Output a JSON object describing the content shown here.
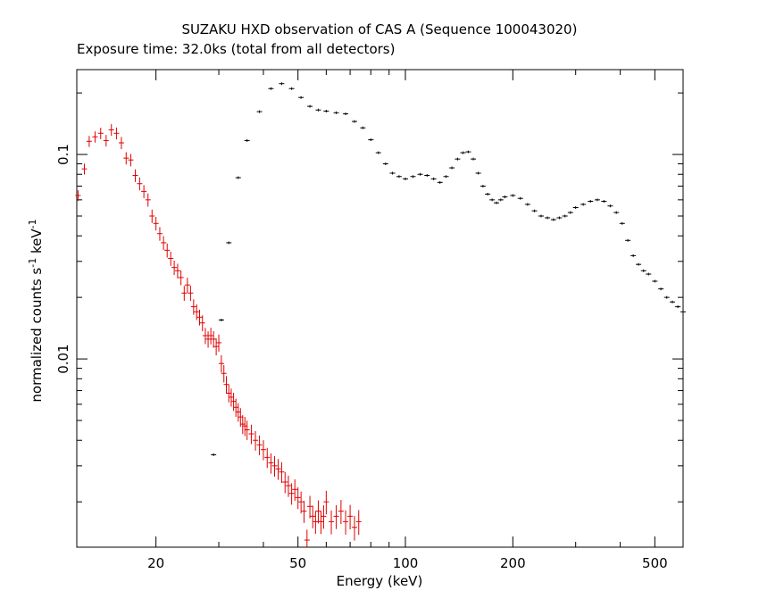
{
  "chart_data": {
    "type": "scatter",
    "title": "SUZAKU HXD observation of CAS A (Sequence 100043020)",
    "subtitle": "Exposure time: 32.0ks (total from all detectors)",
    "xlabel": "Energy (keV)",
    "ylabel_main": "normalized counts s",
    "ylabel_sup1": "-1",
    "ylabel_mid": " keV",
    "ylabel_sup2": "-1",
    "x_scale": "log",
    "y_scale": "log",
    "xlim": [
      12,
      600
    ],
    "ylim": [
      0.0012,
      0.26
    ],
    "grid": false,
    "legend": "none",
    "xticks": [
      {
        "value": 20,
        "label": "20"
      },
      {
        "value": 50,
        "label": "50"
      },
      {
        "value": 100,
        "label": "100"
      },
      {
        "value": 200,
        "label": "200"
      },
      {
        "value": 500,
        "label": "500"
      }
    ],
    "yticks": [
      {
        "value": 0.01,
        "label": "0.01"
      },
      {
        "value": 0.1,
        "label": "0.1"
      }
    ],
    "series": [
      {
        "color": "#e00000",
        "points": [
          [
            12.1,
            0.063
          ],
          [
            12.6,
            0.085
          ],
          [
            13.0,
            0.116
          ],
          [
            13.5,
            0.122
          ],
          [
            14.0,
            0.127
          ],
          [
            14.5,
            0.117
          ],
          [
            15.0,
            0.132
          ],
          [
            15.5,
            0.127
          ],
          [
            16.0,
            0.114
          ],
          [
            16.5,
            0.096
          ],
          [
            17.0,
            0.094
          ],
          [
            17.5,
            0.079
          ],
          [
            18.0,
            0.072
          ],
          [
            18.5,
            0.066
          ],
          [
            19.0,
            0.06
          ],
          [
            19.5,
            0.05
          ],
          [
            20.0,
            0.046
          ],
          [
            20.5,
            0.041
          ],
          [
            21.0,
            0.037
          ],
          [
            21.5,
            0.034
          ],
          [
            22.0,
            0.031
          ],
          [
            22.5,
            0.028
          ],
          [
            23.0,
            0.027
          ],
          [
            23.5,
            0.025
          ],
          [
            24.0,
            0.021
          ],
          [
            24.5,
            0.023
          ],
          [
            25.0,
            0.021
          ],
          [
            25.5,
            0.018
          ],
          [
            26.0,
            0.017
          ],
          [
            26.5,
            0.016
          ],
          [
            27.0,
            0.015
          ],
          [
            27.5,
            0.013
          ],
          [
            28.0,
            0.0125
          ],
          [
            28.5,
            0.013
          ],
          [
            29.0,
            0.0125
          ],
          [
            29.5,
            0.0115
          ],
          [
            30.0,
            0.012
          ],
          [
            30.5,
            0.0095
          ],
          [
            31.0,
            0.0085
          ],
          [
            31.5,
            0.0075
          ],
          [
            32.0,
            0.0068
          ],
          [
            32.5,
            0.0065
          ],
          [
            33.0,
            0.0062
          ],
          [
            33.5,
            0.0058
          ],
          [
            34.0,
            0.0055
          ],
          [
            34.5,
            0.0052
          ],
          [
            35.0,
            0.0048
          ],
          [
            35.5,
            0.0047
          ],
          [
            36.0,
            0.0045
          ],
          [
            37.0,
            0.0043
          ],
          [
            38.0,
            0.004
          ],
          [
            39.0,
            0.0038
          ],
          [
            40.0,
            0.0036
          ],
          [
            41.0,
            0.0033
          ],
          [
            42.0,
            0.0031
          ],
          [
            43.0,
            0.003
          ],
          [
            44.0,
            0.0029
          ],
          [
            45.0,
            0.0028
          ],
          [
            46.0,
            0.0025
          ],
          [
            47.0,
            0.0024
          ],
          [
            48.0,
            0.0022
          ],
          [
            49.0,
            0.0023
          ],
          [
            50.0,
            0.0021
          ],
          [
            51.0,
            0.002
          ],
          [
            52.0,
            0.0018
          ],
          [
            53.0,
            0.0013
          ],
          [
            54.0,
            0.0019
          ],
          [
            55.0,
            0.0017
          ],
          [
            56.0,
            0.0016
          ],
          [
            57.0,
            0.0018
          ],
          [
            58.0,
            0.0016
          ],
          [
            59.0,
            0.0017
          ],
          [
            60.0,
            0.002
          ],
          [
            62.0,
            0.0016
          ],
          [
            64.0,
            0.0017
          ],
          [
            66.0,
            0.0018
          ],
          [
            68.0,
            0.0016
          ],
          [
            70.0,
            0.0017
          ],
          [
            72.0,
            0.0015
          ],
          [
            74.0,
            0.0016
          ]
        ]
      },
      {
        "color": "#000000",
        "points": [
          [
            29.0,
            0.0034
          ],
          [
            30.5,
            0.0155
          ],
          [
            32.0,
            0.037
          ],
          [
            34.0,
            0.077
          ],
          [
            36.0,
            0.117
          ],
          [
            39.0,
            0.162
          ],
          [
            42.0,
            0.21
          ],
          [
            45.0,
            0.222
          ],
          [
            48.0,
            0.21
          ],
          [
            51.0,
            0.19
          ],
          [
            54.0,
            0.172
          ],
          [
            57.0,
            0.165
          ],
          [
            60.0,
            0.163
          ],
          [
            64.0,
            0.16
          ],
          [
            68.0,
            0.158
          ],
          [
            72.0,
            0.145
          ],
          [
            76.0,
            0.135
          ],
          [
            80.0,
            0.118
          ],
          [
            84.0,
            0.102
          ],
          [
            88.0,
            0.09
          ],
          [
            92.0,
            0.081
          ],
          [
            96.0,
            0.078
          ],
          [
            100.0,
            0.076
          ],
          [
            105.0,
            0.078
          ],
          [
            110.0,
            0.08
          ],
          [
            115.0,
            0.079
          ],
          [
            120.0,
            0.076
          ],
          [
            125.0,
            0.073
          ],
          [
            130.0,
            0.078
          ],
          [
            135.0,
            0.086
          ],
          [
            140.0,
            0.095
          ],
          [
            145.0,
            0.102
          ],
          [
            150.0,
            0.103
          ],
          [
            155.0,
            0.095
          ],
          [
            160.0,
            0.081
          ],
          [
            165.0,
            0.07
          ],
          [
            170.0,
            0.064
          ],
          [
            175.0,
            0.06
          ],
          [
            180.0,
            0.058
          ],
          [
            185.0,
            0.06
          ],
          [
            190.0,
            0.062
          ],
          [
            200.0,
            0.063
          ],
          [
            210.0,
            0.061
          ],
          [
            220.0,
            0.057
          ],
          [
            230.0,
            0.053
          ],
          [
            240.0,
            0.05
          ],
          [
            250.0,
            0.049
          ],
          [
            260.0,
            0.048
          ],
          [
            270.0,
            0.049
          ],
          [
            280.0,
            0.05
          ],
          [
            290.0,
            0.052
          ],
          [
            300.0,
            0.055
          ],
          [
            315.0,
            0.057
          ],
          [
            330.0,
            0.059
          ],
          [
            345.0,
            0.06
          ],
          [
            360.0,
            0.059
          ],
          [
            375.0,
            0.056
          ],
          [
            390.0,
            0.052
          ],
          [
            405.0,
            0.046
          ],
          [
            420.0,
            0.038
          ],
          [
            435.0,
            0.032
          ],
          [
            450.0,
            0.029
          ],
          [
            465.0,
            0.027
          ],
          [
            480.0,
            0.026
          ],
          [
            500.0,
            0.024
          ],
          [
            520.0,
            0.022
          ],
          [
            540.0,
            0.02
          ],
          [
            560.0,
            0.019
          ],
          [
            580.0,
            0.018
          ],
          [
            600.0,
            0.017
          ]
        ]
      }
    ]
  }
}
